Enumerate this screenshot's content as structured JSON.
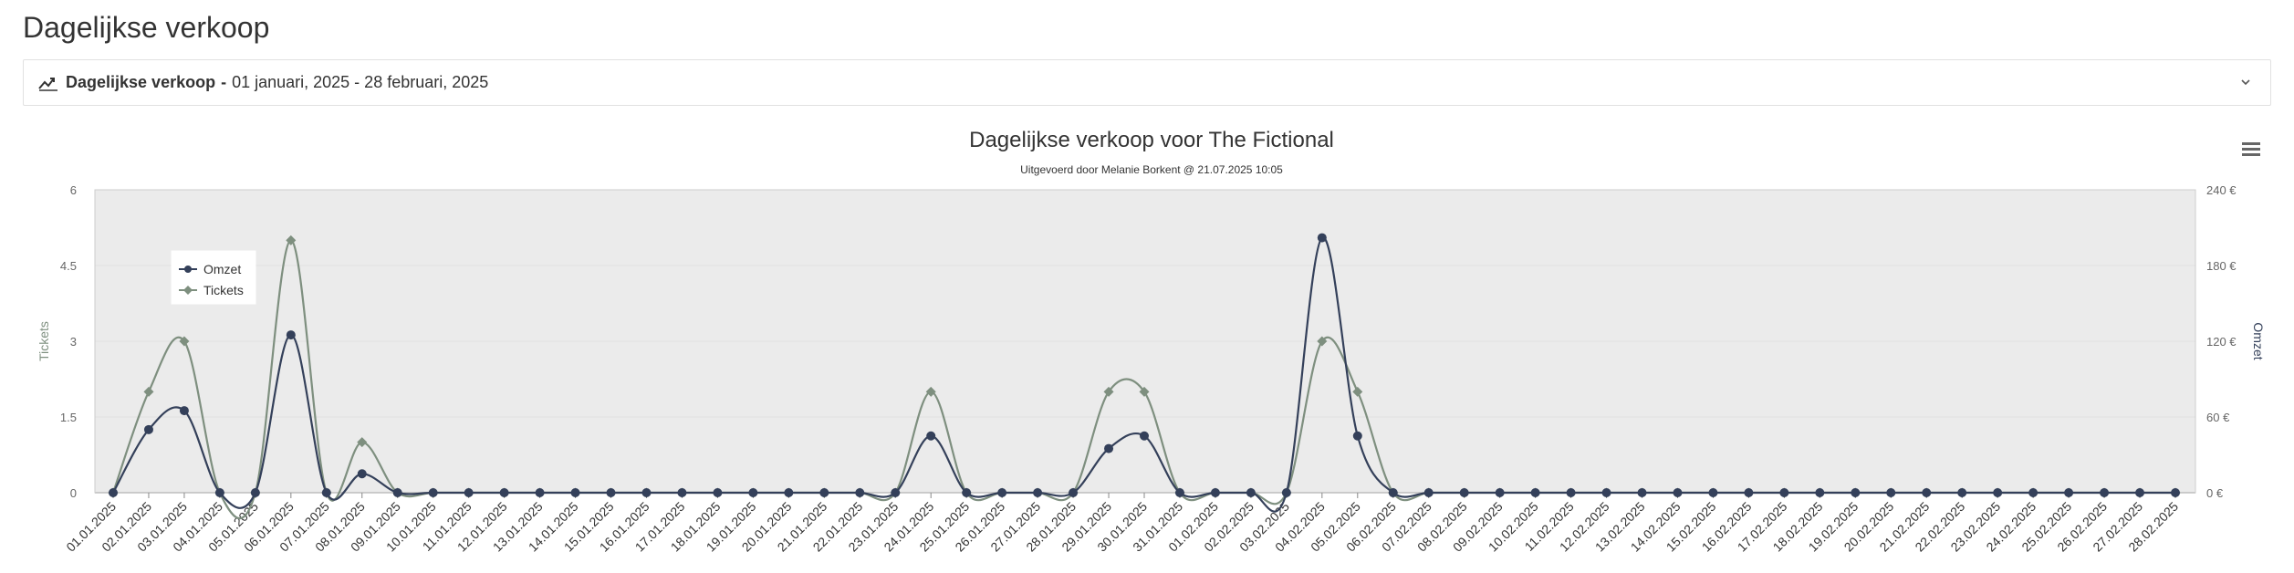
{
  "page": {
    "title": "Dagelijkse verkoop"
  },
  "filter": {
    "title": "Dagelijkse verkoop",
    "separator": "-",
    "range": "01 januari, 2025 - 28 februari, 2025"
  },
  "colors": {
    "omzet": "#34405a",
    "tickets": "#7e8f7f",
    "plot_bg": "#ebebeb"
  },
  "chart_data": {
    "type": "line",
    "title": "Dagelijkse verkoop voor The Fictional",
    "subtitle": "Uitgevoerd door Melanie Borkent @ 21.07.2025 10:05",
    "ylabel_left": "Tickets",
    "ylabel_right": "Omzet",
    "ylim_left": [
      0,
      6
    ],
    "ylim_right": [
      0,
      240
    ],
    "yticks_left": [
      "0",
      "1.5",
      "3",
      "4.5",
      "6"
    ],
    "yticks_right": [
      "0 €",
      "60 €",
      "120 €",
      "180 €",
      "240 €"
    ],
    "legend_position": "top-left",
    "grid": true,
    "categories": [
      "01.01.2025",
      "02.01.2025",
      "03.01.2025",
      "04.01.2025",
      "05.01.2025",
      "06.01.2025",
      "07.01.2025",
      "08.01.2025",
      "09.01.2025",
      "10.01.2025",
      "11.01.2025",
      "12.01.2025",
      "13.01.2025",
      "14.01.2025",
      "15.01.2025",
      "16.01.2025",
      "17.01.2025",
      "18.01.2025",
      "19.01.2025",
      "20.01.2025",
      "21.01.2025",
      "22.01.2025",
      "23.01.2025",
      "24.01.2025",
      "25.01.2025",
      "26.01.2025",
      "27.01.2025",
      "28.01.2025",
      "29.01.2025",
      "30.01.2025",
      "31.01.2025",
      "01.02.2025",
      "02.02.2025",
      "03.02.2025",
      "04.02.2025",
      "05.02.2025",
      "06.02.2025",
      "07.02.2025",
      "08.02.2025",
      "09.02.2025",
      "10.02.2025",
      "11.02.2025",
      "12.02.2025",
      "13.02.2025",
      "14.02.2025",
      "15.02.2025",
      "16.02.2025",
      "17.02.2025",
      "18.02.2025",
      "19.02.2025",
      "20.02.2025",
      "21.02.2025",
      "22.02.2025",
      "23.02.2025",
      "24.02.2025",
      "25.02.2025",
      "26.02.2025",
      "27.02.2025",
      "28.02.2025"
    ],
    "series": [
      {
        "name": "Omzet",
        "axis": "right",
        "marker": "circle",
        "values": [
          0,
          50,
          65,
          0,
          0,
          125,
          0,
          15,
          0,
          0,
          0,
          0,
          0,
          0,
          0,
          0,
          0,
          0,
          0,
          0,
          0,
          0,
          0,
          45,
          0,
          0,
          0,
          0,
          35,
          45,
          0,
          0,
          0,
          0,
          202,
          45,
          0,
          0,
          0,
          0,
          0,
          0,
          0,
          0,
          0,
          0,
          0,
          0,
          0,
          0,
          0,
          0,
          0,
          0,
          0,
          0,
          0,
          0,
          0
        ]
      },
      {
        "name": "Tickets",
        "axis": "left",
        "marker": "diamond",
        "values": [
          0,
          2,
          3,
          0,
          0,
          5,
          0,
          1,
          0,
          0,
          0,
          0,
          0,
          0,
          0,
          0,
          0,
          0,
          0,
          0,
          0,
          0,
          0,
          2,
          0,
          0,
          0,
          0,
          2,
          2,
          0,
          0,
          0,
          0,
          3,
          2,
          0,
          0,
          0,
          0,
          0,
          0,
          0,
          0,
          0,
          0,
          0,
          0,
          0,
          0,
          0,
          0,
          0,
          0,
          0,
          0,
          0,
          0,
          0
        ]
      }
    ]
  }
}
